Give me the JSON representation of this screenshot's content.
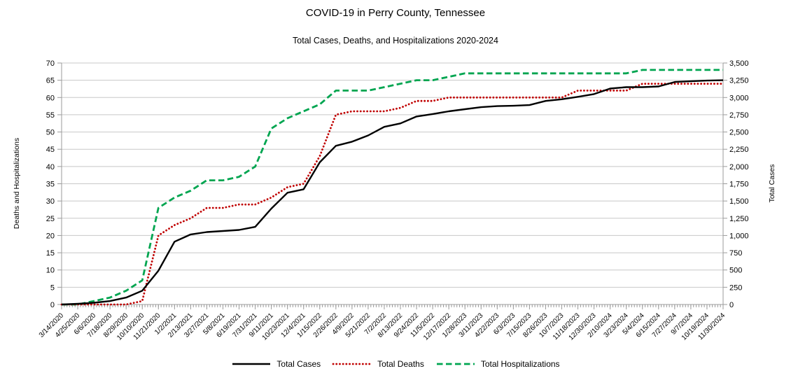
{
  "chart_data": {
    "type": "line",
    "title": "COVID-19 in Perry County, Tennessee",
    "subtitle": "Total Cases, Deaths, and Hospitalizations 2020-2024",
    "x_labels": [
      "3/14/2020",
      "4/25/2020",
      "6/6/2020",
      "7/18/2020",
      "8/29/2020",
      "10/10/2020",
      "11/21/2020",
      "1/2/2021",
      "2/13/2021",
      "3/27/2021",
      "5/8/2021",
      "6/19/2021",
      "7/31/2021",
      "9/11/2021",
      "10/23/2021",
      "12/4/2021",
      "1/15/2022",
      "2/26/2022",
      "4/9/2022",
      "5/21/2022",
      "7/2/2022",
      "8/13/2022",
      "9/24/2022",
      "11/5/2022",
      "12/17/2022",
      "1/28/2023",
      "3/11/2023",
      "4/22/2023",
      "6/3/2023",
      "7/15/2023",
      "8/26/2023",
      "10/7/2023",
      "11/18/2023",
      "12/30/2023",
      "2/10/2024",
      "3/23/2024",
      "5/4/2024",
      "6/15/2024",
      "7/27/2024",
      "9/7/2024",
      "10/19/2024",
      "11/30/2024"
    ],
    "series": [
      {
        "name": "Total Cases",
        "axis": "right",
        "color": "#000000",
        "style": "solid",
        "values": [
          0,
          10,
          25,
          50,
          100,
          200,
          490,
          910,
          1015,
          1050,
          1065,
          1080,
          1125,
          1390,
          1620,
          1670,
          2060,
          2300,
          2360,
          2450,
          2575,
          2625,
          2725,
          2760,
          2800,
          2830,
          2860,
          2875,
          2880,
          2890,
          2950,
          2975,
          3010,
          3050,
          3130,
          3150,
          3150,
          3160,
          3225,
          3235,
          3245,
          3250
        ]
      },
      {
        "name": "Total Deaths",
        "axis": "left",
        "color": "#C00000",
        "style": "dotted",
        "values": [
          0,
          0,
          0,
          0,
          0,
          1,
          20,
          23,
          25,
          28,
          28,
          29,
          29,
          31,
          34,
          35,
          43,
          55,
          56,
          56,
          56,
          57,
          59,
          59,
          60,
          60,
          60,
          60,
          60,
          60,
          60,
          60,
          62,
          62,
          62,
          62,
          64,
          64,
          64,
          64,
          64,
          64
        ]
      },
      {
        "name": "Total Hospitalizations",
        "axis": "left",
        "color": "#00A550",
        "style": "dashed",
        "values": [
          0,
          0,
          1,
          2,
          4,
          7,
          28,
          31,
          33,
          36,
          36,
          37,
          40,
          51,
          54,
          56,
          58,
          62,
          62,
          62,
          63,
          64,
          65,
          65,
          66,
          67,
          67,
          67,
          67,
          67,
          67,
          67,
          67,
          67,
          67,
          67,
          68,
          68,
          68,
          68,
          68,
          68
        ]
      }
    ],
    "left_axis": {
      "label": "Deaths and Hospitalizations",
      "min": 0,
      "max": 70,
      "step": 5
    },
    "right_axis": {
      "label": "Total Cases",
      "min": 0,
      "max": 3500,
      "step": 250
    },
    "grid": true,
    "legend_position": "bottom",
    "minor_ticks_per_label_interval": 6
  }
}
